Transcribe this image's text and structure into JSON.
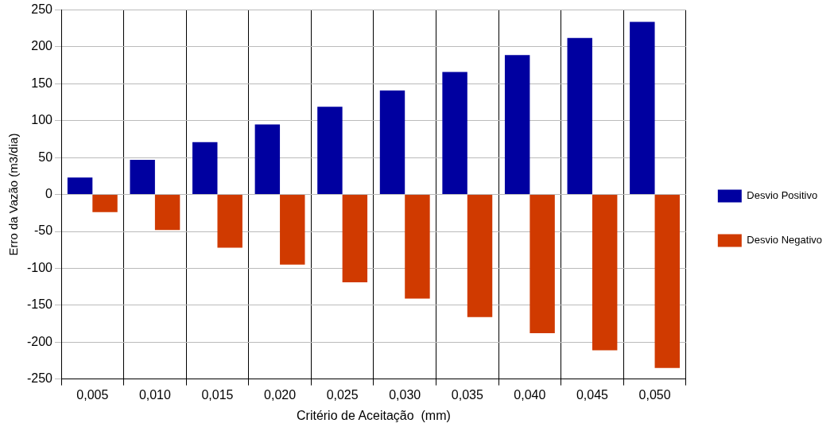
{
  "chart_data": {
    "type": "bar",
    "xlabel": "Critério de Aceitação  (mm)",
    "ylabel": "Erro da Vazão (m3/dia)",
    "categories": [
      "0,005",
      "0,010",
      "0,015",
      "0,020",
      "0,025",
      "0,030",
      "0,035",
      "0,040",
      "0,045",
      "0,050"
    ],
    "series": [
      {
        "name": "Desvio Positivo",
        "color": "#0000a0",
        "values": [
          23,
          47,
          71,
          95,
          119,
          141,
          166,
          189,
          212,
          234
        ]
      },
      {
        "name": "Desvio Negativo",
        "color": "#d03a00",
        "values": [
          -24,
          -48,
          -72,
          -95,
          -119,
          -141,
          -166,
          -188,
          -211,
          -235
        ]
      }
    ],
    "ylim": [
      -250,
      250
    ],
    "yticks": [
      -250,
      -200,
      -150,
      -100,
      -50,
      0,
      50,
      100,
      150,
      200,
      250
    ],
    "grid": true,
    "legend": "right"
  }
}
